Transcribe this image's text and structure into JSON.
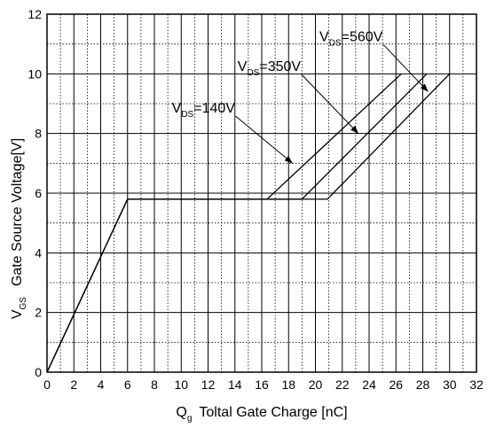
{
  "chart_data": {
    "type": "line",
    "title": "",
    "xlabel": "Toltal Gate Charge [nC]",
    "xlabel_symbol": "Q",
    "xlabel_symbol_sub": "g",
    "ylabel": "Gate Source Voltage[V]",
    "ylabel_symbol": "V",
    "ylabel_symbol_sub": "GS",
    "xlim": [
      0,
      32
    ],
    "ylim": [
      0,
      12
    ],
    "x_ticks": [
      0,
      2,
      4,
      6,
      8,
      10,
      12,
      14,
      16,
      18,
      20,
      22,
      24,
      26,
      28,
      30,
      32
    ],
    "y_ticks": [
      0,
      2,
      4,
      6,
      8,
      10,
      12
    ],
    "grid": {
      "major_y": 2,
      "minor_y": 1,
      "major_x": 2,
      "minor_x": 1,
      "minor_style": "dotted"
    },
    "legend": "none",
    "series": [
      {
        "name": "140V",
        "x": [
          0,
          6,
          16.4,
          26.4
        ],
        "y": [
          0,
          5.8,
          5.8,
          10
        ]
      },
      {
        "name": "350V",
        "x": [
          0,
          6,
          19,
          28.3
        ],
        "y": [
          0,
          5.8,
          5.8,
          10
        ]
      },
      {
        "name": "560V",
        "x": [
          0,
          6,
          20.9,
          30
        ],
        "y": [
          0,
          5.8,
          5.8,
          10
        ]
      }
    ],
    "annotations": [
      {
        "label_main": "V",
        "label_sub": "DS",
        "label_value": "=140V",
        "text_at": [
          9.3,
          8.7
        ],
        "arrow_to": [
          18.3,
          7.0
        ]
      },
      {
        "label_main": "V",
        "label_sub": "DS",
        "label_value": "=350V",
        "text_at": [
          14.2,
          10.1
        ],
        "arrow_to": [
          23.2,
          8.0
        ]
      },
      {
        "label_main": "V",
        "label_sub": "DS",
        "label_value": "=560V",
        "text_at": [
          20.3,
          11.1
        ],
        "arrow_to": [
          28.4,
          9.4
        ]
      }
    ]
  }
}
